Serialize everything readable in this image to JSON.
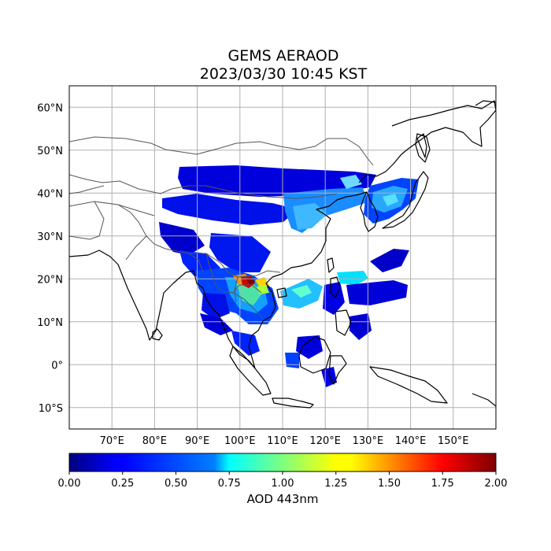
{
  "title": "GEMS AERAOD",
  "subtitle": "2023/03/30 10:45 KST",
  "map": {
    "lon_range": [
      60,
      160
    ],
    "lat_range": [
      -15,
      65
    ],
    "gridlines": true,
    "lon_ticks": [
      {
        "value": 70,
        "label": "70°E"
      },
      {
        "value": 80,
        "label": "80°E"
      },
      {
        "value": 90,
        "label": "90°E"
      },
      {
        "value": 100,
        "label": "100°E"
      },
      {
        "value": 110,
        "label": "110°E"
      },
      {
        "value": 120,
        "label": "120°E"
      },
      {
        "value": 130,
        "label": "130°E"
      },
      {
        "value": 140,
        "label": "140°E"
      },
      {
        "value": 150,
        "label": "150°E"
      }
    ],
    "lat_ticks": [
      {
        "value": 60,
        "label": "60°N"
      },
      {
        "value": 50,
        "label": "50°N"
      },
      {
        "value": 40,
        "label": "40°N"
      },
      {
        "value": 30,
        "label": "30°N"
      },
      {
        "value": 20,
        "label": "20°N"
      },
      {
        "value": 10,
        "label": "10°N"
      },
      {
        "value": 0,
        "label": "0°"
      },
      {
        "value": -10,
        "label": "10°S"
      }
    ]
  },
  "colorbar": {
    "label": "AOD 443nm",
    "colormap": "jet",
    "min": 0.0,
    "max": 2.0,
    "ticks": [
      "0.00",
      "0.25",
      "0.50",
      "0.75",
      "1.00",
      "1.25",
      "1.50",
      "1.75",
      "2.00"
    ]
  }
}
